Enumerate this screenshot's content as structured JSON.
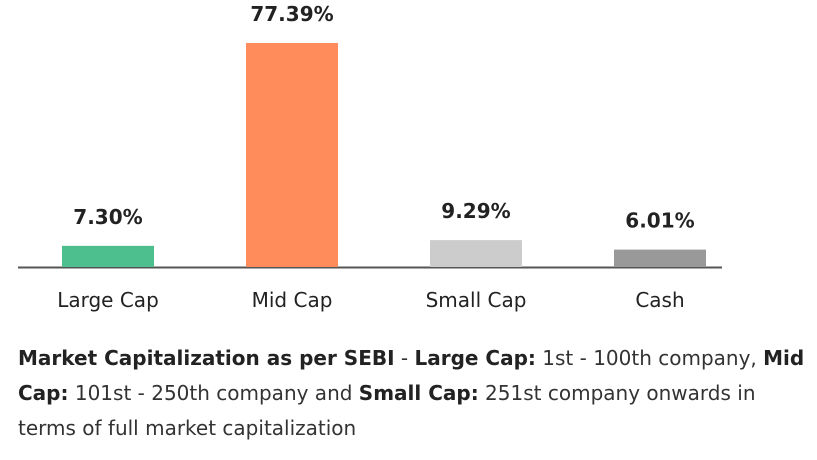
{
  "chart_data": {
    "type": "bar",
    "categories": [
      "Large Cap",
      "Mid Cap",
      "Small Cap",
      "Cash"
    ],
    "values": [
      7.3,
      77.39,
      9.29,
      6.01
    ],
    "value_labels": [
      "7.30%",
      "77.39%",
      "9.29%",
      "6.01%"
    ],
    "colors": [
      "#4dbf8f",
      "#ff8c5a",
      "#cccccc",
      "#999999"
    ],
    "ylim": [
      0,
      77.39
    ],
    "grid": false,
    "legend": "none"
  },
  "footnote": {
    "part1_bold": "Market Capitalization as per SEBI",
    "part2": " - ",
    "part3_bold": "Large Cap:",
    "part4": " 1st - 100th company, ",
    "part5_bold": "Mid Cap:",
    "part6": " 101st - 250th company and ",
    "part7_bold": "Small Cap:",
    "part8": " 251st company onwards in terms of full market capitalization"
  }
}
